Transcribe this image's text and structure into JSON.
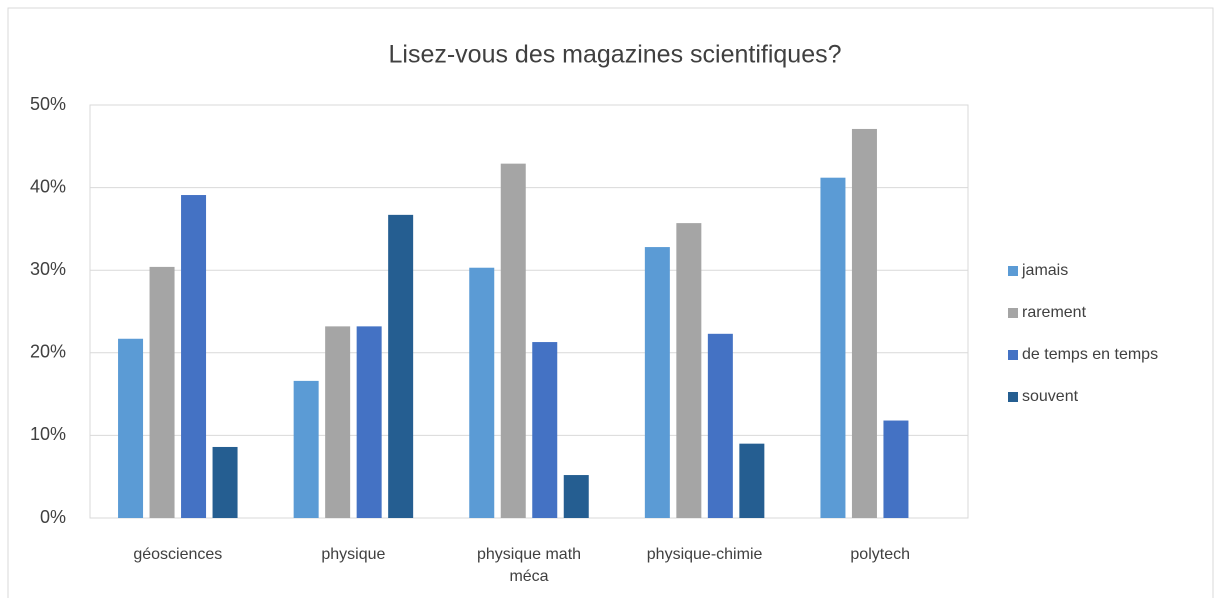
{
  "chart_data": {
    "type": "bar",
    "title": "Lisez-vous des magazines scientifiques?",
    "categories": [
      "géosciences",
      "physique",
      "physique math méca",
      "physique-chimie",
      "polytech"
    ],
    "series": [
      {
        "name": "jamais",
        "color": "#5b9bd5",
        "values": [
          21.7,
          16.6,
          30.3,
          32.8,
          41.2
        ]
      },
      {
        "name": "rarement",
        "color": "#a5a5a5",
        "values": [
          30.4,
          23.2,
          42.9,
          35.7,
          47.1
        ]
      },
      {
        "name": "de temps en temps",
        "color": "#4472c4",
        "values": [
          39.1,
          23.2,
          21.3,
          22.3,
          11.8
        ]
      },
      {
        "name": "souvent",
        "color": "#255e91",
        "values": [
          8.6,
          36.7,
          5.2,
          9.0,
          null
        ]
      }
    ],
    "ylim": [
      0,
      50
    ],
    "yticks": [
      {
        "value": 0,
        "label": "0%"
      },
      {
        "value": 10,
        "label": "10%"
      },
      {
        "value": 20,
        "label": "20%"
      },
      {
        "value": 30,
        "label": "30%"
      },
      {
        "value": 40,
        "label": "40%"
      },
      {
        "value": 50,
        "label": "50%"
      }
    ],
    "grid": true,
    "legend": "right"
  }
}
